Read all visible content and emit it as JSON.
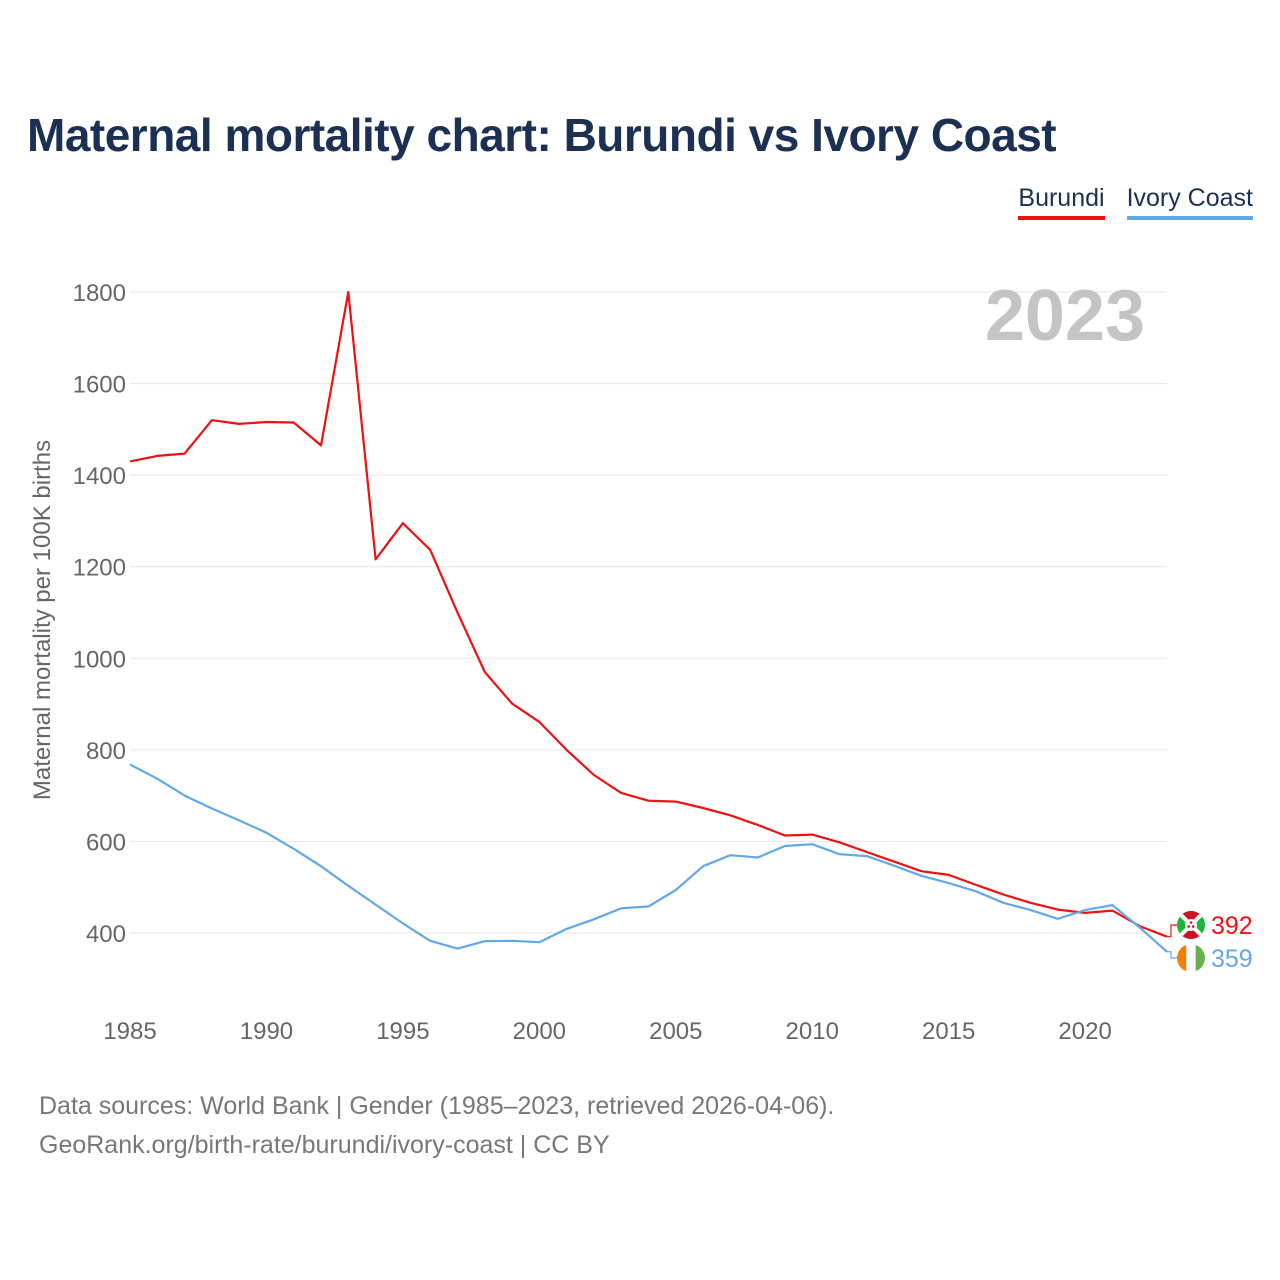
{
  "title": "Maternal mortality chart: Burundi vs Ivory Coast",
  "footer": {
    "line1": "Data sources: World Bank | Gender (1985–2023, retrieved 2026-04-06).",
    "line2": "GeoRank.org/birth-rate/burundi/ivory-coast | CC BY"
  },
  "chart_data": {
    "type": "line",
    "year_label": "2023",
    "ylabel": "Maternal mortality per 100K births",
    "xlim": [
      1985,
      2023
    ],
    "ylim": [
      300,
      1800
    ],
    "yticks": [
      400,
      600,
      800,
      1000,
      1200,
      1400,
      1600,
      1800
    ],
    "xticks": [
      1985,
      1990,
      1995,
      2000,
      2005,
      2010,
      2015,
      2020
    ],
    "grid": true,
    "legend_position": "top-right",
    "x": [
      1985,
      1986,
      1987,
      1988,
      1989,
      1990,
      1991,
      1992,
      1993,
      1994,
      1995,
      1996,
      1997,
      1998,
      1999,
      2000,
      2001,
      2002,
      2003,
      2004,
      2005,
      2006,
      2007,
      2008,
      2009,
      2010,
      2011,
      2012,
      2013,
      2014,
      2015,
      2016,
      2017,
      2018,
      2019,
      2020,
      2021,
      2022,
      2023
    ],
    "series": [
      {
        "name": "Burundi",
        "color": "#ee1111",
        "end_label": "392",
        "flag_icon": "burundi-flag-icon",
        "values": [
          1430,
          1442,
          1447,
          1520,
          1512,
          1516,
          1515,
          1465,
          1800,
          1216,
          1295,
          1237,
          1100,
          970,
          901,
          861,
          800,
          745,
          706,
          689,
          687,
          673,
          657,
          636,
          613,
          615,
          598,
          577,
          556,
          535,
          527,
          505,
          484,
          466,
          451,
          444,
          449,
          415,
          392
        ]
      },
      {
        "name": "Ivory Coast",
        "color": "#62a8e8",
        "end_label": "359",
        "flag_icon": "ivory-coast-flag-icon",
        "values": [
          768,
          737,
          700,
          672,
          646,
          619,
          584,
          546,
          503,
          462,
          421,
          383,
          366,
          382,
          383,
          380,
          409,
          430,
          454,
          458,
          494,
          546,
          570,
          565,
          590,
          594,
          572,
          568,
          547,
          525,
          509,
          491,
          466,
          450,
          431,
          450,
          461,
          412,
          359
        ]
      }
    ]
  }
}
